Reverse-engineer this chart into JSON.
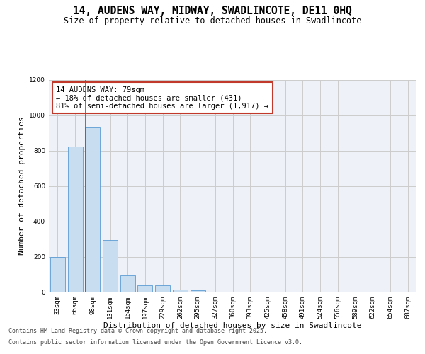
{
  "title_line1": "14, AUDENS WAY, MIDWAY, SWADLINCOTE, DE11 0HQ",
  "title_line2": "Size of property relative to detached houses in Swadlincote",
  "xlabel": "Distribution of detached houses by size in Swadlincote",
  "ylabel": "Number of detached properties",
  "categories": [
    "33sqm",
    "66sqm",
    "98sqm",
    "131sqm",
    "164sqm",
    "197sqm",
    "229sqm",
    "262sqm",
    "295sqm",
    "327sqm",
    "360sqm",
    "393sqm",
    "425sqm",
    "458sqm",
    "491sqm",
    "524sqm",
    "556sqm",
    "589sqm",
    "622sqm",
    "654sqm",
    "687sqm"
  ],
  "values": [
    197,
    823,
    930,
    295,
    95,
    37,
    37,
    14,
    9,
    0,
    0,
    0,
    0,
    0,
    0,
    0,
    0,
    0,
    0,
    0,
    0
  ],
  "bar_color": "#c9ddf0",
  "bar_edge_color": "#5b9bd5",
  "vline_color": "#c0392b",
  "vline_pos": 1.6,
  "annotation_text": "14 AUDENS WAY: 79sqm\n← 18% of detached houses are smaller (431)\n81% of semi-detached houses are larger (1,917) →",
  "annotation_box_color": "#c0392b",
  "ylim": [
    0,
    1200
  ],
  "yticks": [
    0,
    200,
    400,
    600,
    800,
    1000,
    1200
  ],
  "grid_color": "#cccccc",
  "background_color": "#eef2f8",
  "footer_line1": "Contains HM Land Registry data © Crown copyright and database right 2025.",
  "footer_line2": "Contains public sector information licensed under the Open Government Licence v3.0.",
  "title_fontsize": 10.5,
  "subtitle_fontsize": 8.5,
  "tick_fontsize": 6.5,
  "ylabel_fontsize": 8,
  "xlabel_fontsize": 8,
  "footer_fontsize": 6,
  "annot_fontsize": 7.5
}
